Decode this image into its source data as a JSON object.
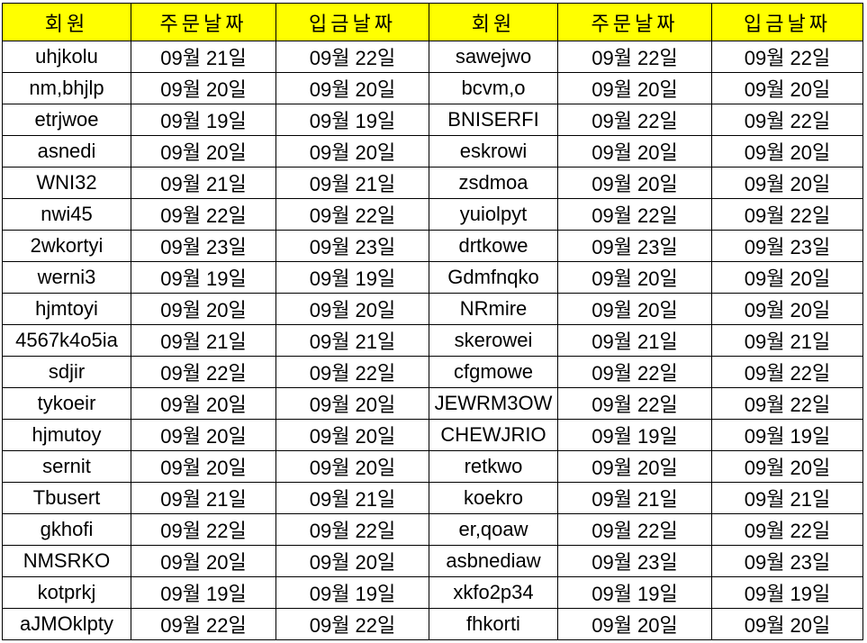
{
  "sheet": {
    "header_color": "#ffff00",
    "headers": [
      "회원",
      "주문날짜",
      "입금날짜",
      "회원",
      "주문날짜",
      "입금날짜"
    ],
    "rows": [
      [
        "uhjkolu",
        "09월 21일",
        "09월 22일",
        "sawejwo",
        "09월 22일",
        "09월 22일"
      ],
      [
        "nm,bhjlp",
        "09월 20일",
        "09월 20일",
        "bcvm,o",
        "09월 20일",
        "09월 20일"
      ],
      [
        "etrjwoe",
        "09월 19일",
        "09월 19일",
        "BNISERFI",
        "09월 22일",
        "09월 22일"
      ],
      [
        "asnedi",
        "09월 20일",
        "09월 20일",
        "eskrowi",
        "09월 20일",
        "09월 20일"
      ],
      [
        "WNI32",
        "09월 21일",
        "09월 21일",
        "zsdmoa",
        "09월 20일",
        "09월 20일"
      ],
      [
        "nwi45",
        "09월 22일",
        "09월 22일",
        "yuiolpyt",
        "09월 22일",
        "09월 22일"
      ],
      [
        "2wkortyi",
        "09월 23일",
        "09월 23일",
        "drtkowe",
        "09월 23일",
        "09월 23일"
      ],
      [
        "werni3",
        "09월 19일",
        "09월 19일",
        "Gdmfnqko",
        "09월 20일",
        "09월 20일"
      ],
      [
        "hjmtoyi",
        "09월 20일",
        "09월 20일",
        "NRmire",
        "09월 20일",
        "09월 20일"
      ],
      [
        "4567k4o5ia",
        "09월 21일",
        "09월 21일",
        "skerowei",
        "09월 21일",
        "09월 21일"
      ],
      [
        "sdjir",
        "09월 22일",
        "09월 22일",
        "cfgmowe",
        "09월 22일",
        "09월 22일"
      ],
      [
        "tykoeir",
        "09월 20일",
        "09월 20일",
        "JEWRM3OW",
        "09월 22일",
        "09월 22일"
      ],
      [
        "hjmutoy",
        "09월 20일",
        "09월 20일",
        "CHEWJRIO",
        "09월 19일",
        "09월 19일"
      ],
      [
        "sernit",
        "09월 20일",
        "09월 20일",
        "retkwo",
        "09월 20일",
        "09월 20일"
      ],
      [
        "Tbusert",
        "09월 21일",
        "09월 21일",
        "koekro",
        "09월 21일",
        "09월 21일"
      ],
      [
        "gkhofi",
        "09월 22일",
        "09월 22일",
        "er,qoaw",
        "09월 22일",
        "09월 22일"
      ],
      [
        "NMSRKO",
        "09월 20일",
        "09월 20일",
        "asbnediaw",
        "09월 23일",
        "09월 23일"
      ],
      [
        "kotprkj",
        "09월 19일",
        "09월 19일",
        "xkfo2p34",
        "09월 19일",
        "09월 19일"
      ],
      [
        "aJMOklpty",
        "09월 22일",
        "09월 22일",
        "fhkorti",
        "09월 20일",
        "09월 20일"
      ]
    ]
  }
}
